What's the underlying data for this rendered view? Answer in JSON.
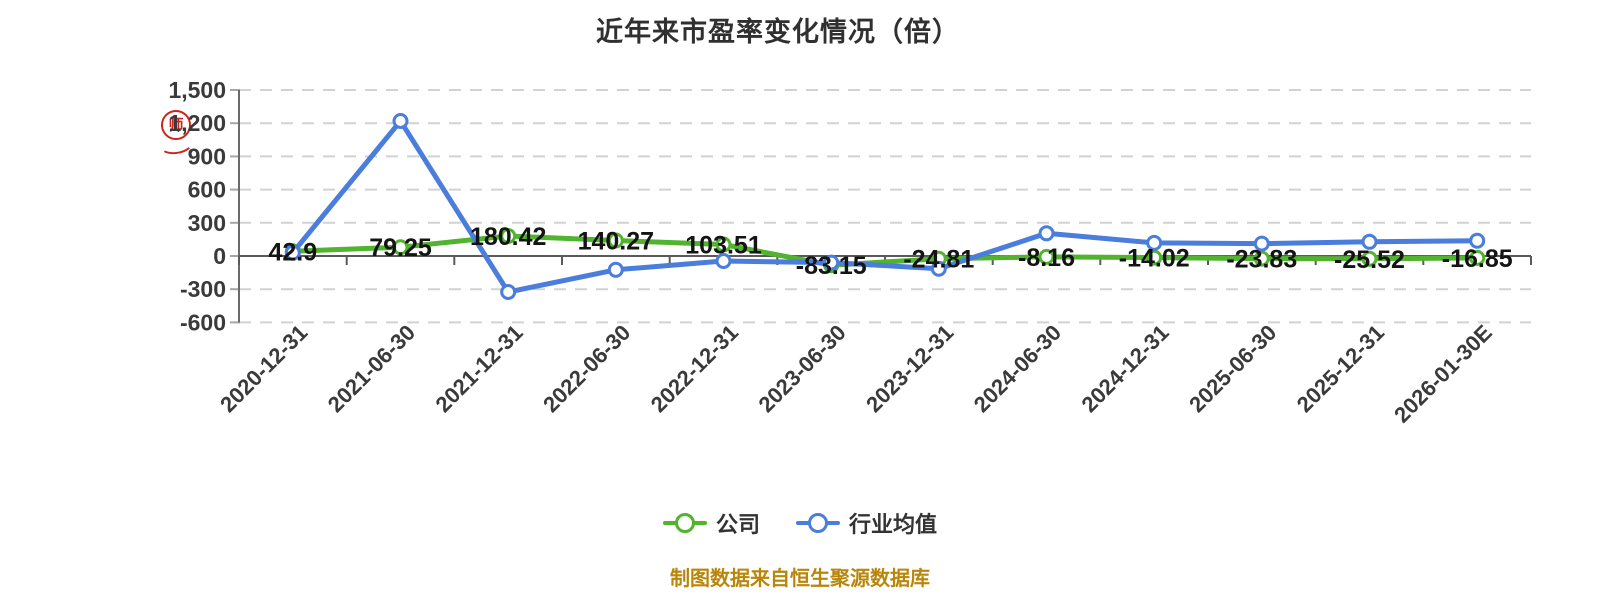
{
  "title": "近年来市盈率变化情况（倍）",
  "footer": "制图数据来自恒生聚源数据库",
  "watermark": {
    "icon": "red-seal-stamp",
    "glyph": "师"
  },
  "legend": [
    {
      "label": "公司",
      "color": "#52b32e"
    },
    {
      "label": "行业均值",
      "color": "#4a7ddc"
    }
  ],
  "colors": {
    "company_line": "#52b32e",
    "industry_line": "#4a7ddc",
    "gridline": "#d2d2d2",
    "axis": "#5a5a5a",
    "tick_label": "#3a3a3a",
    "data_label": "#141414",
    "footer_text": "#b8860b",
    "seal_red": "#cf241c",
    "background": "#ffffff"
  },
  "chart_data": {
    "type": "line",
    "title": "近年来市盈率变化情况（倍）",
    "categories": [
      "2020-12-31",
      "2021-06-30",
      "2021-12-31",
      "2022-06-30",
      "2022-12-31",
      "2023-06-30",
      "2023-12-31",
      "2024-06-30",
      "2024-12-31",
      "2025-06-30",
      "2025-12-31",
      "2026-01-30E"
    ],
    "series": [
      {
        "name": "公司",
        "color": "#52b32e",
        "labeled": true,
        "values": [
          42.9,
          79.25,
          180.42,
          140.27,
          103.51,
          -83.15,
          -24.81,
          -8.16,
          -14.02,
          -23.83,
          -25.52,
          -16.85
        ]
      },
      {
        "name": "行业均值",
        "color": "#4a7ddc",
        "labeled": false,
        "values_estimated": true,
        "values": [
          30,
          1220,
          -325,
          -125,
          -45,
          -60,
          -115,
          205,
          118,
          112,
          128,
          138
        ]
      }
    ],
    "ylim": [
      -600,
      1500
    ],
    "yticks": [
      1500,
      1200,
      900,
      600,
      300,
      0,
      -300,
      -600
    ],
    "grid": "dashed-horizontal",
    "legend_position": "bottom",
    "x_label_rotation": 45
  }
}
